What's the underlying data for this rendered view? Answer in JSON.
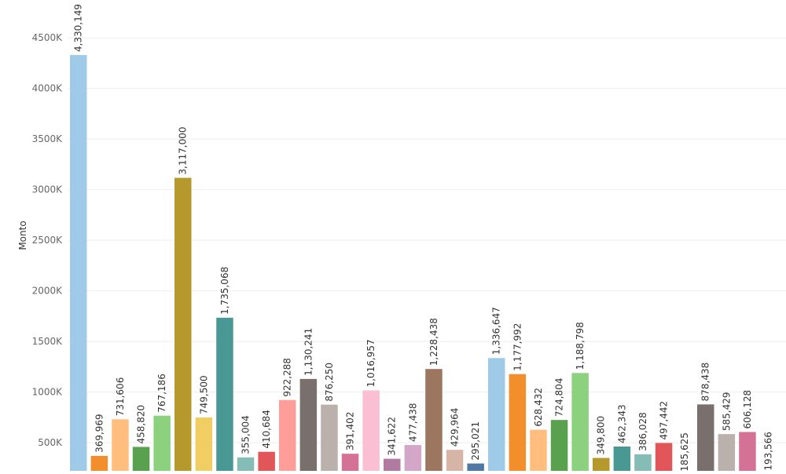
{
  "chart_data": {
    "type": "bar",
    "ylabel": "Monto",
    "grid": true,
    "y_ticks": [
      500000,
      1000000,
      1500000,
      2000000,
      2500000,
      3000000,
      3500000,
      4000000,
      4500000
    ],
    "y_tick_labels": [
      "500K",
      "1000K",
      "1500K",
      "2000K",
      "2500K",
      "3000K",
      "3500K",
      "4000K",
      "4500K"
    ],
    "values": [
      4330149,
      369969,
      731606,
      458820,
      767186,
      3117000,
      749500,
      1735068,
      355004,
      410684,
      922288,
      1130241,
      876250,
      391402,
      1016957,
      341622,
      477438,
      1228438,
      429964,
      295021,
      1336647,
      1177992,
      628432,
      724804,
      1188798,
      349800,
      462343,
      386028,
      497442,
      185625,
      878438,
      585429,
      606128,
      193566
    ],
    "data_labels": [
      "4,330,149",
      "369,969",
      "731,606",
      "458,820",
      "767,186",
      "3,117,000",
      "749,500",
      "1,735,068",
      "355,004",
      "410,684",
      "922,288",
      "1,130,241",
      "876,250",
      "391,402",
      "1,016,957",
      "341,622",
      "477,438",
      "1,228,438",
      "429,964",
      "295,021",
      "1,336,647",
      "1,177,992",
      "628,432",
      "724,804",
      "1,188,798",
      "349,800",
      "462,343",
      "386,028",
      "497,442",
      "185,625",
      "878,438",
      "585,429",
      "606,128",
      "193,566"
    ],
    "colors": [
      "#a0cbe8",
      "#f28e2b",
      "#ffbe7d",
      "#59a14f",
      "#8cd17d",
      "#b6992d",
      "#f1ce63",
      "#499894",
      "#86bcb6",
      "#e15759",
      "#ff9d9a",
      "#79706e",
      "#bab0ac",
      "#d37295",
      "#fabfd2",
      "#b07aa1",
      "#d4a6c8",
      "#9d7660",
      "#d7b5a6",
      "#4e79a7",
      "#a0cbe8",
      "#f28e2b",
      "#ffbe7d",
      "#59a14f",
      "#8cd17d",
      "#b6992d",
      "#499894",
      "#86bcb6",
      "#e15759",
      "#ff9d9a",
      "#79706e",
      "#bab0ac",
      "#d37295",
      "#fabfd2"
    ]
  }
}
